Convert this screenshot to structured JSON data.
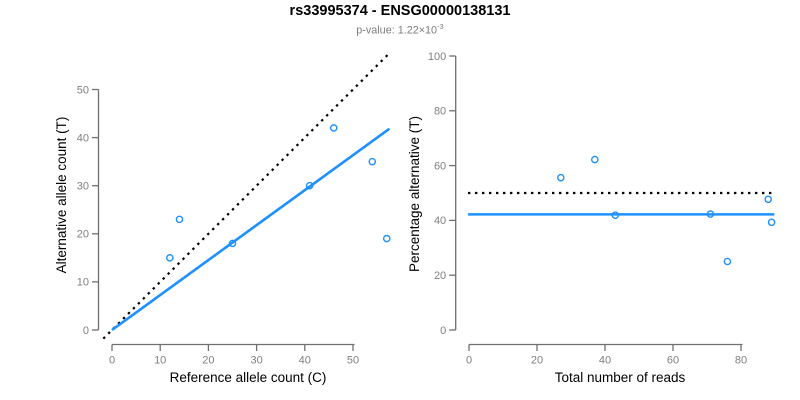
{
  "figure": {
    "title": "rs33995374 - ENSG00000138131",
    "subtitle_base": "p-value: 1.22×10",
    "subtitle_exponent": "-3"
  },
  "colors": {
    "accent_blue": "#1E90FF",
    "axis_line_gray": "#6f6f6f",
    "tick_label_gray": "#7f7f7f",
    "dotted_line_black": "#000000",
    "title_black": "#000000",
    "background": "#ffffff"
  },
  "chart_data": [
    {
      "type": "scatter",
      "name": "allele-counts-scatter",
      "xlabel": "Reference allele count (C)",
      "ylabel": "Alternative allele count (T)",
      "xticks": [
        0,
        10,
        20,
        30,
        40,
        50
      ],
      "yticks": [
        0,
        10,
        20,
        30,
        40,
        50
      ],
      "xlim": [
        -2.2,
        57.7
      ],
      "ylim": [
        -2.2,
        57.6
      ],
      "grid": false,
      "legend": "none",
      "points": [
        [
          12,
          15
        ],
        [
          14,
          23
        ],
        [
          25,
          18
        ],
        [
          41,
          30
        ],
        [
          46,
          42
        ],
        [
          54,
          35
        ],
        [
          57,
          19
        ]
      ],
      "lines": [
        {
          "name": "identity-line",
          "slope": 1,
          "intercept": 0,
          "style": "dotted",
          "color": "#000000",
          "xrange": [
            -1.8,
            59.0
          ]
        },
        {
          "name": "fit-line",
          "slope": 0.727,
          "intercept": 0,
          "style": "solid",
          "color": "#1E90FF",
          "xrange": [
            0,
            57.55
          ]
        }
      ]
    },
    {
      "type": "scatter",
      "name": "percentage-alternative-scatter",
      "xlabel": "Total number of reads",
      "ylabel": "Percentage alternative (T)",
      "xticks": [
        0,
        20,
        40,
        60,
        80
      ],
      "yticks": [
        0,
        20,
        40,
        60,
        80,
        100
      ],
      "xlim": [
        -3.6,
        92.7
      ],
      "ylim": [
        -4,
        104
      ],
      "grid": false,
      "legend": "none",
      "points": [
        [
          27,
          55.6
        ],
        [
          37,
          62.2
        ],
        [
          43,
          41.9
        ],
        [
          71,
          42.3
        ],
        [
          76,
          25.0
        ],
        [
          88,
          47.7
        ],
        [
          89,
          39.3
        ]
      ],
      "lines": [
        {
          "name": "null-50pct-line",
          "slope": 0,
          "intercept": 50,
          "style": "dotted",
          "color": "#000000",
          "xrange": [
            -0.3,
            89.8
          ]
        },
        {
          "name": "fit-line",
          "slope": 0,
          "intercept": 42.2,
          "style": "solid",
          "color": "#1E90FF",
          "xrange": [
            -0.3,
            89.8
          ]
        }
      ]
    }
  ]
}
